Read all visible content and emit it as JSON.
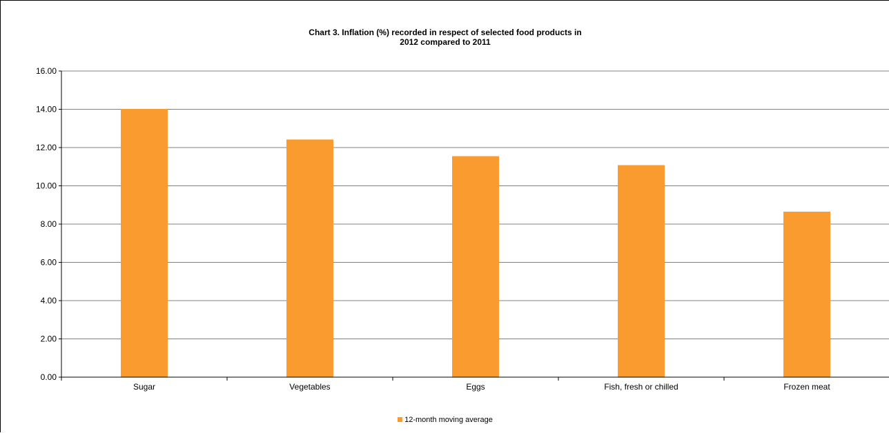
{
  "chart_data": {
    "type": "bar",
    "title_line1": "Chart 3.  Inflation (%) recorded in respect of selected food products in",
    "title_line2": "2012 compared to 2011",
    "categories": [
      "Sugar",
      "Vegetables",
      "Eggs",
      "Fish, fresh or chilled",
      "Frozen meat"
    ],
    "series": [
      {
        "name": "12-month moving average",
        "values": [
          14.02,
          12.42,
          11.55,
          11.08,
          8.65
        ]
      }
    ],
    "ylim": [
      0,
      16
    ],
    "yticks": [
      "0.00",
      "2.00",
      "4.00",
      "6.00",
      "8.00",
      "10.00",
      "12.00",
      "14.00",
      "16.00"
    ],
    "grid": true,
    "legend_position": "bottom",
    "bar_color": "#F99B2E",
    "gridline_color": "#808080"
  }
}
